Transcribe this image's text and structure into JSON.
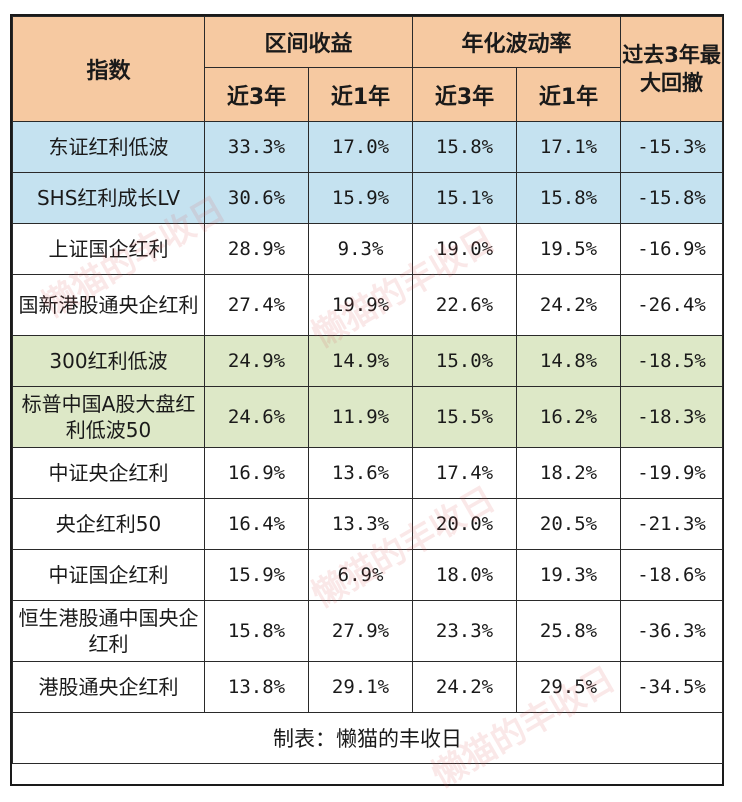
{
  "header": {
    "index_label": "指数",
    "group_return": "区间收益",
    "group_volatility": "年化波动率",
    "drawdown_label": "过去3年最大回撤",
    "sub_3y": "近3年",
    "sub_1y": "近1年"
  },
  "rows": [
    {
      "name": "东证红利低波",
      "r3": "33.3%",
      "r1": "17.0%",
      "v3": "15.8%",
      "v1": "17.1%",
      "dd": "-15.3%"
    },
    {
      "name": "SHS红利成长LV",
      "r3": "30.6%",
      "r1": "15.9%",
      "v3": "15.1%",
      "v1": "15.8%",
      "dd": "-15.8%"
    },
    {
      "name": "上证国企红利",
      "r3": "28.9%",
      "r1": "9.3%",
      "v3": "19.0%",
      "v1": "19.5%",
      "dd": "-16.9%"
    },
    {
      "name": "国新港股通央企红利",
      "r3": "27.4%",
      "r1": "19.9%",
      "v3": "22.6%",
      "v1": "24.2%",
      "dd": "-26.4%"
    },
    {
      "name": "300红利低波",
      "r3": "24.9%",
      "r1": "14.9%",
      "v3": "15.0%",
      "v1": "14.8%",
      "dd": "-18.5%"
    },
    {
      "name": "标普中国A股大盘红利低波50",
      "r3": "24.6%",
      "r1": "11.9%",
      "v3": "15.5%",
      "v1": "16.2%",
      "dd": "-18.3%"
    },
    {
      "name": "中证央企红利",
      "r3": "16.9%",
      "r1": "13.6%",
      "v3": "17.4%",
      "v1": "18.2%",
      "dd": "-19.9%"
    },
    {
      "name": "央企红利50",
      "r3": "16.4%",
      "r1": "13.3%",
      "v3": "20.0%",
      "v1": "20.5%",
      "dd": "-21.3%"
    },
    {
      "name": "中证国企红利",
      "r3": "15.9%",
      "r1": "6.9%",
      "v3": "18.0%",
      "v1": "19.3%",
      "dd": "-18.6%"
    },
    {
      "name": "恒生港股通中国央企红利",
      "r3": "15.8%",
      "r1": "27.9%",
      "v3": "23.3%",
      "v1": "25.8%",
      "dd": "-36.3%"
    },
    {
      "name": "港股通央企红利",
      "r3": "13.8%",
      "r1": "29.1%",
      "v3": "24.2%",
      "v1": "29.5%",
      "dd": "-34.5%"
    }
  ],
  "footer": "制表：懒猫的丰收日",
  "watermark": "懒猫的丰收日",
  "colors": {
    "header": "#f6c9a1",
    "highlight_blue": "#c5e2f0",
    "highlight_green": "#dde8c7"
  }
}
